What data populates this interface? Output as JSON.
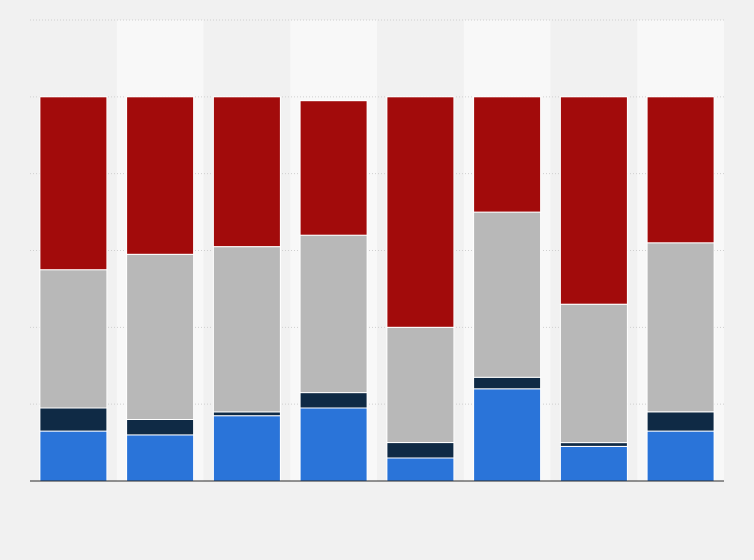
{
  "chart_data": {
    "type": "bar",
    "stacked": true,
    "categories": [
      "",
      "",
      "",
      "",
      "",
      "",
      "",
      ""
    ],
    "series": [
      {
        "color": "#2a74d9",
        "values": [
          13,
          12,
          17,
          19,
          6,
          24,
          9,
          13
        ]
      },
      {
        "color": "#0f2a45",
        "values": [
          6,
          4,
          1,
          4,
          4,
          3,
          1,
          5
        ]
      },
      {
        "color": "#b8b8b8",
        "values": [
          36,
          43,
          43,
          41,
          30,
          43,
          36,
          44
        ]
      },
      {
        "color": "#a20b0b",
        "values": [
          45,
          41,
          39,
          35,
          60,
          30,
          54,
          38
        ]
      }
    ],
    "ylim": [
      0,
      120
    ],
    "grid": true,
    "legend": "none"
  }
}
